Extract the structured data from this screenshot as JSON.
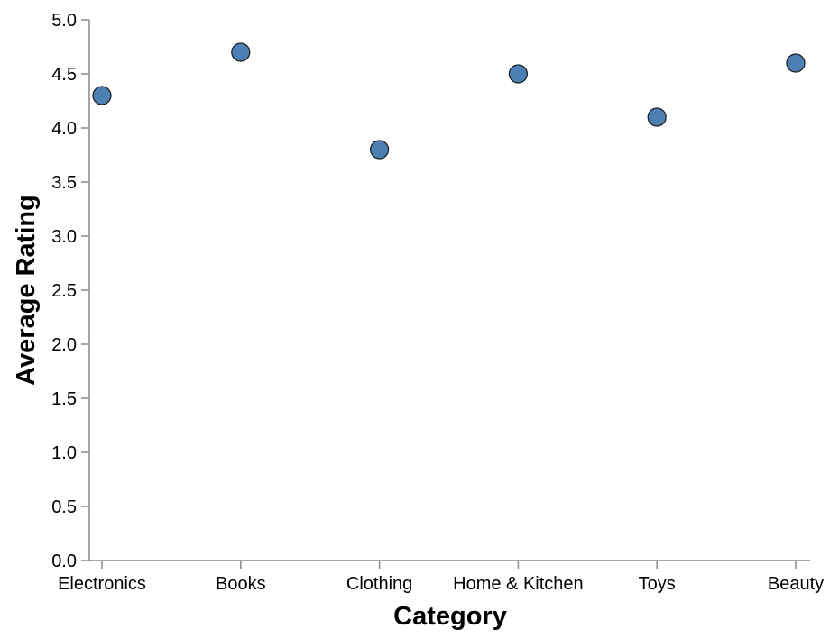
{
  "chart_data": {
    "type": "scatter",
    "title": "",
    "xlabel": "Category",
    "ylabel": "Average Rating",
    "categories": [
      "Electronics",
      "Books",
      "Clothing",
      "Home & Kitchen",
      "Toys",
      "Beauty"
    ],
    "values": [
      4.3,
      4.7,
      3.8,
      4.5,
      4.1,
      4.6
    ],
    "ylim": [
      0,
      5
    ],
    "yticks": [
      "0.0",
      "0.5",
      "1.0",
      "1.5",
      "2.0",
      "2.5",
      "3.0",
      "3.5",
      "4.0",
      "4.5",
      "5.0"
    ],
    "grid": false,
    "point_color": "#4C7FB4"
  }
}
